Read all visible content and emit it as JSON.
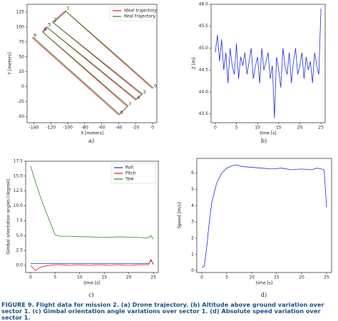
{
  "chart_data": [
    {
      "type": "line",
      "xlabel": "X [meters]",
      "ylabel": "Y [meters]",
      "xlim": [
        -148,
        5
      ],
      "ylim": [
        -60,
        138
      ],
      "xticks": [
        -140,
        -120,
        -100,
        -80,
        -60,
        -40,
        -20,
        0
      ],
      "yticks": [
        -50,
        -25,
        0,
        25,
        50,
        75,
        100,
        125
      ],
      "legend": "upper right",
      "series": [
        {
          "name": "Ideal trajectory",
          "color": "#e8121b",
          "x": [
            0,
            -103,
            -118,
            -13,
            -20,
            -125,
            -130,
            -30,
            -40,
            -142
          ],
          "values": [
            -3,
            127,
            108,
            -13,
            -22,
            100,
            92,
            -33,
            -47,
            82
          ]
        },
        {
          "name": "Real trajectory",
          "color": "#2a7a1e",
          "x": [
            1,
            -102,
            -117,
            -12,
            -19,
            -124,
            -129,
            -29,
            -39,
            -141
          ],
          "values": [
            -2,
            126,
            107,
            -12,
            -21,
            99,
            91,
            -32,
            -46,
            83
          ]
        }
      ],
      "annotations": [
        {
          "text": "0",
          "x": 0,
          "y": -3
        },
        {
          "text": "1",
          "x": -103,
          "y": 127
        },
        {
          "text": "2",
          "x": -118,
          "y": 108
        },
        {
          "text": "3",
          "x": -13,
          "y": -13
        },
        {
          "text": "4",
          "x": -20,
          "y": -22
        },
        {
          "text": "5",
          "x": -125,
          "y": 100
        },
        {
          "text": "6",
          "x": -130,
          "y": 92
        },
        {
          "text": "7",
          "x": -30,
          "y": -33
        },
        {
          "text": "8",
          "x": -40,
          "y": -47
        },
        {
          "text": "9",
          "x": -142,
          "y": 82
        }
      ]
    },
    {
      "type": "line",
      "xlabel": "time [s]",
      "ylabel": "Z [m]",
      "xlim": [
        -1,
        26
      ],
      "ylim": [
        43.3,
        46.0
      ],
      "xticks": [
        0,
        5,
        10,
        15,
        20,
        25
      ],
      "yticks": [
        43.5,
        {
          "value": 44,
          "label": "44.0"
        },
        44.5,
        {
          "value": 45,
          "label": "45.0"
        },
        45.5,
        {
          "value": 46,
          "label": "46.0"
        }
      ],
      "series": [
        {
          "color": "#1f2fe0",
          "x": [
            0,
            0.5,
            1,
            1.5,
            2,
            2.5,
            3,
            3.5,
            4,
            4.5,
            5,
            5.5,
            6,
            6.5,
            7,
            7.5,
            8,
            8.5,
            9,
            9.5,
            10,
            10.5,
            11,
            11.5,
            12,
            12.5,
            13,
            13.5,
            14,
            14.5,
            15,
            15.5,
            16,
            16.5,
            17,
            17.5,
            18,
            18.5,
            19,
            19.5,
            20,
            20.5,
            21,
            21.5,
            22,
            22.5,
            23,
            23.5,
            24,
            24.5,
            25
          ],
          "values": [
            44.9,
            45.3,
            44.7,
            45.2,
            44.5,
            44.9,
            44.2,
            45.0,
            44.6,
            44.4,
            45.1,
            44.3,
            44.8,
            44.6,
            44.9,
            44.4,
            44.7,
            45.0,
            44.3,
            44.6,
            44.8,
            44.2,
            45.0,
            44.5,
            44.7,
            44.9,
            44.3,
            44.6,
            43.4,
            44.8,
            44.5,
            44.1,
            45.0,
            44.6,
            44.4,
            44.9,
            44.2,
            44.7,
            45.0,
            44.4,
            44.6,
            44.9,
            44.3,
            44.8,
            44.5,
            44.7,
            44.2,
            44.9,
            44.6,
            44.4,
            45.9
          ]
        }
      ]
    },
    {
      "type": "line",
      "xlabel": "time [s]",
      "ylabel": "Gimbal orientation angles [degree]",
      "xlim": [
        -1,
        26
      ],
      "ylim": [
        -1.2,
        17.5
      ],
      "xticks": [
        0,
        5,
        10,
        15,
        20,
        25
      ],
      "yticks": [
        {
          "value": 0,
          "label": "0.0"
        },
        2.5,
        {
          "value": 5,
          "label": "5.0"
        },
        7.5,
        {
          "value": 10,
          "label": "10.0"
        },
        12.5,
        {
          "value": 15,
          "label": "15.0"
        },
        17.5
      ],
      "legend": "upper right",
      "series": [
        {
          "name": "Roll",
          "color": "#1f2fe0",
          "x": [
            0,
            1,
            2,
            3,
            4,
            5,
            6,
            8,
            10,
            12,
            14,
            16,
            18,
            20,
            22,
            24,
            24.5,
            25
          ],
          "values": [
            0.3,
            0.3,
            0.3,
            0.3,
            0.3,
            0.3,
            0.3,
            0.3,
            0.3,
            0.3,
            0.3,
            0.3,
            0.3,
            0.3,
            0.3,
            0.3,
            0.8,
            0.3
          ]
        },
        {
          "name": "Pitch",
          "color": "#e8121b",
          "x": [
            0,
            1,
            2,
            3,
            4,
            5,
            6,
            8,
            10,
            12,
            14,
            16,
            18,
            20,
            22,
            24,
            24.5,
            25
          ],
          "values": [
            0.0,
            -0.9,
            -0.3,
            -0.1,
            0.0,
            0.1,
            0.1,
            0.0,
            0.1,
            0.0,
            0.1,
            0.0,
            0.1,
            0.0,
            0.1,
            0.1,
            1.0,
            0.1
          ]
        },
        {
          "name": "Yaw",
          "color": "#2a8a1e",
          "x": [
            0,
            1,
            2,
            3,
            4,
            5,
            6,
            8,
            10,
            12,
            14,
            16,
            18,
            20,
            22,
            24,
            24.5,
            25
          ],
          "values": [
            16.7,
            14.0,
            11.5,
            9.3,
            7.2,
            5.1,
            4.9,
            4.9,
            4.8,
            4.8,
            4.7,
            4.7,
            4.8,
            4.7,
            4.7,
            4.6,
            5.0,
            4.4
          ]
        }
      ]
    },
    {
      "type": "line",
      "xlabel": "time [s]",
      "ylabel": "Speed [m/s]",
      "xlim": [
        -1,
        26
      ],
      "ylim": [
        -0.1,
        6.9
      ],
      "xticks": [
        0,
        5,
        10,
        15,
        20,
        25
      ],
      "yticks": [
        0,
        1,
        2,
        3,
        4,
        5,
        6
      ],
      "series": [
        {
          "color": "#1f2fe0",
          "x": [
            0,
            0.5,
            1,
            1.5,
            2,
            3,
            4,
            5,
            6,
            7,
            8,
            10,
            12,
            14,
            16,
            18,
            20,
            22,
            23,
            24,
            24.5,
            25
          ],
          "values": [
            0.2,
            0.3,
            1.5,
            3.0,
            4.2,
            5.4,
            6.0,
            6.3,
            6.45,
            6.5,
            6.4,
            6.35,
            6.3,
            6.25,
            6.3,
            6.2,
            6.25,
            6.2,
            6.3,
            6.25,
            6.2,
            3.9
          ]
        }
      ]
    }
  ],
  "panel_labels": [
    "a)",
    "b)",
    "c)",
    "d)"
  ],
  "caption": {
    "label": "FIGURE 9.",
    "text": "Flight data for mission 2. (a) Drone trajectory. (b) Altitude above ground variation over sector 1. (c) Gimbal orientation angle variations over sector 1. (d) Absolute speed variation over sector 1."
  }
}
